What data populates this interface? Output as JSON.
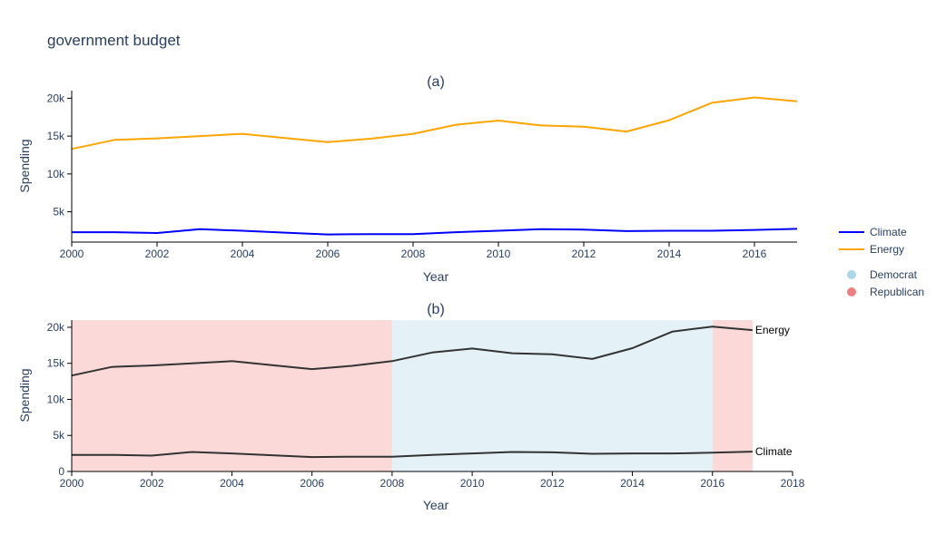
{
  "chart_data": [
    {
      "type": "line",
      "title": "government budget",
      "subtitle": "(a)",
      "xlabel": "Year",
      "ylabel": "Spending",
      "xlim": [
        2000,
        2017
      ],
      "ylim": [
        1000,
        21000
      ],
      "x_ticks": [
        2000,
        2002,
        2004,
        2006,
        2008,
        2010,
        2012,
        2014,
        2016
      ],
      "y_ticks": [
        5000,
        10000,
        15000,
        20000
      ],
      "y_tick_labels": [
        "5k",
        "10k",
        "15k",
        "20k"
      ],
      "x": [
        2000,
        2001,
        2002,
        2003,
        2004,
        2005,
        2006,
        2007,
        2008,
        2009,
        2010,
        2011,
        2012,
        2013,
        2014,
        2015,
        2016,
        2017
      ],
      "series": [
        {
          "name": "Climate",
          "color": "#0000ff",
          "values": [
            2300,
            2300,
            2200,
            2700,
            2500,
            2250,
            2000,
            2050,
            2050,
            2300,
            2500,
            2700,
            2650,
            2450,
            2500,
            2500,
            2600,
            2750
          ]
        },
        {
          "name": "Energy",
          "color": "#ffa500",
          "values": [
            13300,
            14500,
            14700,
            15000,
            15300,
            14750,
            14200,
            14650,
            15300,
            16500,
            17050,
            16400,
            16250,
            15600,
            17100,
            19400,
            20100,
            19600
          ]
        }
      ],
      "legend_position": "right",
      "grid": false
    },
    {
      "type": "line",
      "subtitle": "(b)",
      "xlabel": "Year",
      "ylabel": "Spending",
      "xlim": [
        2000,
        2018
      ],
      "ylim": [
        0,
        21000
      ],
      "x_ticks": [
        2000,
        2002,
        2004,
        2006,
        2008,
        2010,
        2012,
        2014,
        2016,
        2018
      ],
      "y_ticks": [
        0,
        5000,
        10000,
        15000,
        20000
      ],
      "y_tick_labels": [
        "0",
        "5k",
        "10k",
        "15k",
        "20k"
      ],
      "x": [
        2000,
        2001,
        2002,
        2003,
        2004,
        2005,
        2006,
        2007,
        2008,
        2009,
        2010,
        2011,
        2012,
        2013,
        2014,
        2015,
        2016,
        2017
      ],
      "series": [
        {
          "name": "Climate",
          "color": "#333333",
          "values": [
            2300,
            2300,
            2200,
            2700,
            2500,
            2250,
            2000,
            2050,
            2050,
            2300,
            2500,
            2700,
            2650,
            2450,
            2500,
            2500,
            2600,
            2750
          ]
        },
        {
          "name": "Energy",
          "color": "#333333",
          "values": [
            13300,
            14500,
            14700,
            15000,
            15300,
            14750,
            14200,
            14650,
            15300,
            16500,
            17050,
            16400,
            16250,
            15600,
            17100,
            19400,
            20100,
            19600
          ]
        }
      ],
      "shaded_periods": [
        {
          "party": "Republican",
          "start": 2000,
          "end": 2008
        },
        {
          "party": "Democrat",
          "start": 2008,
          "end": 2016
        },
        {
          "party": "Republican",
          "start": 2016,
          "end": 2017
        }
      ],
      "end_labels": [
        "Climate",
        "Energy"
      ],
      "grid": false
    }
  ],
  "legend": {
    "lines": [
      {
        "name": "Climate",
        "color": "#0000ff"
      },
      {
        "name": "Energy",
        "color": "#ffa500"
      }
    ],
    "parties": [
      {
        "name": "Democrat",
        "color": "#add8e6",
        "fill": "#e4f2f8"
      },
      {
        "name": "Republican",
        "color": "#f08080",
        "fill": "#fbd9d9"
      }
    ]
  }
}
